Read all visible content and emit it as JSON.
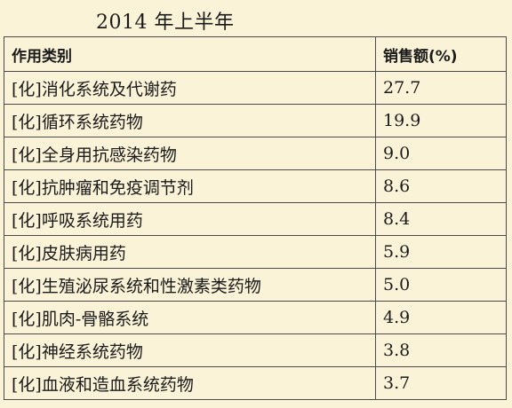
{
  "title": "2014 年上半年",
  "chart_data": {
    "type": "table",
    "title": "2014 年上半年",
    "columns": [
      "作用类别",
      "销售额(%)"
    ],
    "rows": [
      {
        "category": "[化]消化系统及代谢药",
        "value": "27.7"
      },
      {
        "category": "[化]循环系统药物",
        "value": "19.9"
      },
      {
        "category": "[化]全身用抗感染药物",
        "value": "9.0"
      },
      {
        "category": "[化]抗肿瘤和免疫调节剂",
        "value": "8.6"
      },
      {
        "category": "[化]呼吸系统用药",
        "value": "8.4"
      },
      {
        "category": "[化]皮肤病用药",
        "value": "5.9"
      },
      {
        "category": "[化]生殖泌尿系统和性激素类药物",
        "value": "5.0"
      },
      {
        "category": "[化]肌肉-骨骼系统",
        "value": "4.9"
      },
      {
        "category": "[化]神经系统药物",
        "value": "3.8"
      },
      {
        "category": "[化]血液和造血系统药物",
        "value": "3.7"
      }
    ]
  }
}
